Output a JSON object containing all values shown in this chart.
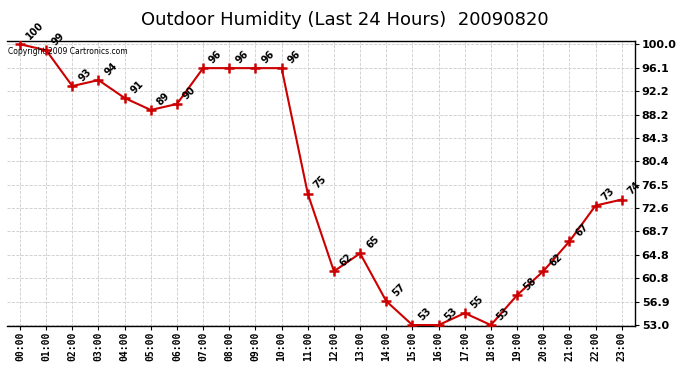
{
  "title": "Outdoor Humidity (Last 24 Hours)  20090820",
  "copyright_text": "Copyright 2009 Cartronics.com",
  "hours": [
    0,
    1,
    2,
    3,
    4,
    5,
    6,
    7,
    8,
    9,
    10,
    11,
    12,
    13,
    14,
    15,
    16,
    17,
    18,
    19,
    20,
    21,
    22,
    23
  ],
  "hour_labels": [
    "00:00",
    "01:00",
    "02:00",
    "03:00",
    "04:00",
    "05:00",
    "06:00",
    "07:00",
    "08:00",
    "09:00",
    "10:00",
    "11:00",
    "12:00",
    "13:00",
    "14:00",
    "15:00",
    "16:00",
    "17:00",
    "18:00",
    "19:00",
    "20:00",
    "21:00",
    "22:00",
    "23:00"
  ],
  "values": [
    100,
    99,
    93,
    94,
    91,
    89,
    90,
    96,
    96,
    96,
    96,
    75,
    62,
    65,
    57,
    53,
    53,
    55,
    53,
    58,
    62,
    67,
    73,
    74
  ],
  "ymin": 53.0,
  "ymax": 100.0,
  "ytick_values": [
    53.0,
    56.9,
    60.8,
    64.8,
    68.7,
    72.6,
    76.5,
    80.4,
    84.3,
    88.2,
    92.2,
    96.1,
    100.0
  ],
  "ytick_labels": [
    "53.0",
    "56.9",
    "60.8",
    "64.8",
    "68.7",
    "72.6",
    "76.5",
    "80.4",
    "84.3",
    "88.2",
    "92.2",
    "96.1",
    "100.0"
  ],
  "line_color": "#cc0000",
  "bg_color": "#ffffff",
  "grid_color": "#cccccc",
  "title_fontsize": 13,
  "axis_label_fontsize": 7,
  "data_label_fontsize": 7,
  "ytick_fontsize": 8,
  "fig_width": 6.9,
  "fig_height": 3.75,
  "dpi": 100
}
